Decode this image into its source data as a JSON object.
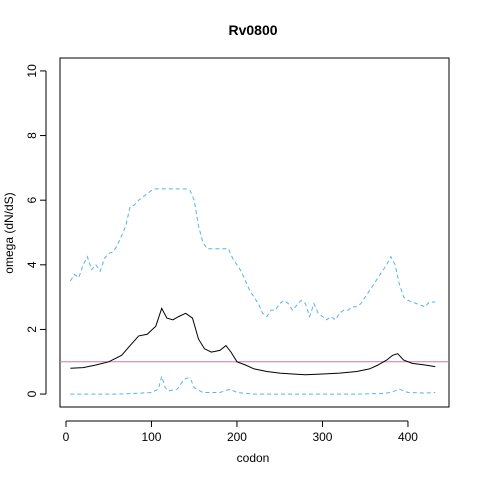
{
  "chart_data": {
    "type": "line",
    "title": "Rv0800",
    "xlabel": "codon",
    "ylabel": "omega (dN/dS)",
    "xlim": [
      -7,
      448
    ],
    "ylim": [
      -0.4,
      10.4
    ],
    "xticks": [
      0,
      100,
      200,
      300,
      400
    ],
    "yticks": [
      0,
      2,
      4,
      6,
      8,
      10
    ],
    "grid": false,
    "reference_line": {
      "y": 1,
      "color": "#cc79a7"
    },
    "series": [
      {
        "style": "solid",
        "color": "#000000",
        "x": [
          5,
          20,
          35,
          50,
          65,
          75,
          85,
          95,
          105,
          112,
          118,
          125,
          132,
          140,
          148,
          155,
          162,
          170,
          180,
          187,
          193,
          200,
          210,
          220,
          235,
          250,
          265,
          280,
          300,
          320,
          340,
          355,
          365,
          375,
          382,
          388,
          395,
          405,
          420,
          432
        ],
        "y": [
          0.8,
          0.82,
          0.9,
          1.0,
          1.2,
          1.5,
          1.8,
          1.85,
          2.1,
          2.65,
          2.35,
          2.3,
          2.4,
          2.5,
          2.35,
          1.7,
          1.4,
          1.3,
          1.35,
          1.5,
          1.3,
          1.0,
          0.9,
          0.78,
          0.7,
          0.65,
          0.62,
          0.6,
          0.62,
          0.65,
          0.7,
          0.78,
          0.9,
          1.05,
          1.2,
          1.25,
          1.05,
          0.95,
          0.9,
          0.85
        ]
      },
      {
        "style": "dashed",
        "color": "#56b4e9",
        "x": [
          5,
          10,
          15,
          20,
          25,
          30,
          35,
          40,
          45,
          50,
          55,
          60,
          65,
          70,
          75,
          80,
          85,
          90,
          95,
          100,
          105,
          110,
          115,
          120,
          125,
          130,
          135,
          140,
          145,
          150,
          155,
          160,
          165,
          170,
          175,
          180,
          185,
          190,
          195,
          200,
          205,
          210,
          215,
          220,
          225,
          230,
          235,
          240,
          245,
          250,
          255,
          260,
          265,
          270,
          275,
          280,
          285,
          290,
          295,
          300,
          305,
          310,
          315,
          320,
          325,
          330,
          335,
          340,
          345,
          350,
          355,
          360,
          365,
          370,
          375,
          380,
          385,
          390,
          395,
          400,
          405,
          410,
          415,
          420,
          425,
          432
        ],
        "y": [
          3.5,
          3.7,
          3.6,
          4.0,
          4.25,
          3.85,
          4.0,
          3.8,
          4.2,
          4.35,
          4.4,
          4.6,
          4.9,
          5.2,
          5.8,
          5.85,
          6.0,
          6.1,
          6.2,
          6.3,
          6.35,
          6.35,
          6.35,
          6.35,
          6.35,
          6.35,
          6.35,
          6.35,
          6.3,
          6.0,
          5.2,
          4.7,
          4.5,
          4.5,
          4.5,
          4.5,
          4.5,
          4.5,
          4.2,
          4.0,
          3.8,
          3.5,
          3.2,
          3.0,
          2.8,
          2.5,
          2.4,
          2.6,
          2.6,
          2.8,
          2.9,
          2.8,
          2.6,
          2.75,
          2.9,
          2.8,
          2.4,
          2.8,
          2.5,
          2.4,
          2.3,
          2.4,
          2.3,
          2.5,
          2.6,
          2.6,
          2.7,
          2.7,
          2.8,
          3.0,
          3.2,
          3.4,
          3.6,
          3.8,
          4.0,
          4.25,
          4.0,
          3.4,
          3.0,
          2.9,
          2.85,
          2.8,
          2.75,
          2.7,
          2.85,
          2.85
        ]
      },
      {
        "style": "dashed",
        "color": "#56b4e9",
        "x": [
          5,
          30,
          60,
          80,
          100,
          108,
          112,
          116,
          120,
          130,
          138,
          142,
          146,
          150,
          160,
          180,
          192,
          196,
          200,
          220,
          260,
          300,
          340,
          370,
          380,
          385,
          390,
          395,
          400,
          420,
          432
        ],
        "y": [
          0.0,
          0.0,
          0.0,
          0.02,
          0.05,
          0.15,
          0.55,
          0.2,
          0.1,
          0.15,
          0.45,
          0.5,
          0.45,
          0.2,
          0.05,
          0.05,
          0.15,
          0.1,
          0.05,
          0.0,
          0.0,
          0.0,
          0.0,
          0.02,
          0.05,
          0.1,
          0.15,
          0.1,
          0.05,
          0.03,
          0.05
        ]
      }
    ]
  }
}
